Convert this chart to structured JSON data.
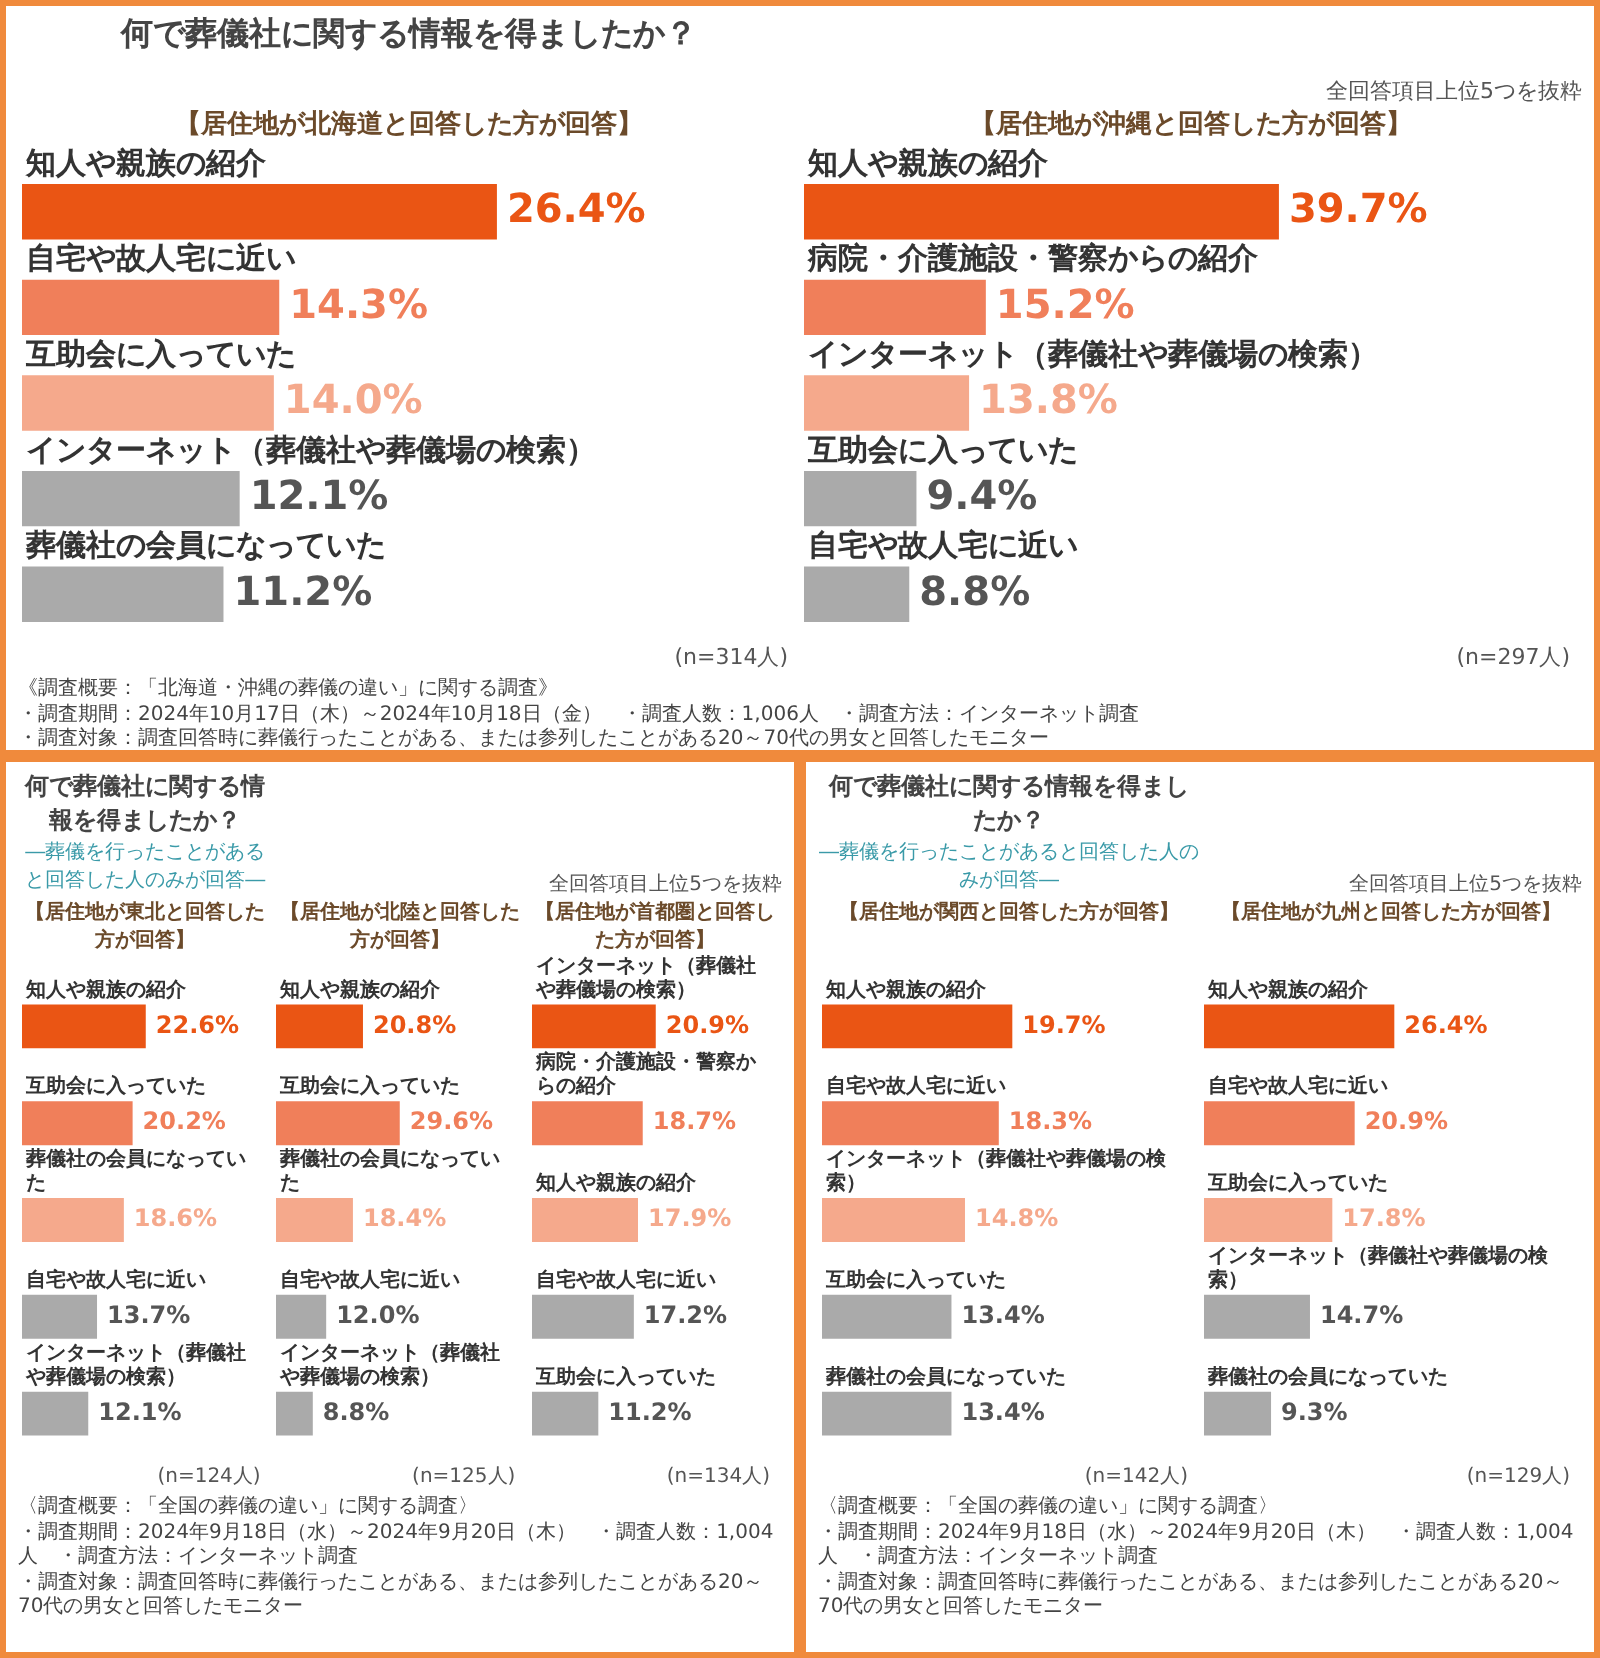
{
  "chart_data": [
    {
      "type": "bar",
      "orientation": "horizontal",
      "title": "何で葬儀社に関する情報を得ましたか？",
      "categories": [
        "知人や親族の紹介",
        "自宅や故人宅に近い",
        "互助会に入っていた",
        "インターネット（葬儀社や葬儀場の検索）",
        "葬儀社の会員になっていた"
      ],
      "values": [
        26.4,
        14.3,
        14.0,
        12.1,
        11.2
      ],
      "value_labels": [
        "26.4%",
        "14.3%",
        "14.0%",
        "12.1%",
        "11.2%"
      ],
      "colors": [
        "#ea5514",
        "#f07f5a",
        "#f5a98c",
        "#aaaaaa",
        "#aaaaaa"
      ],
      "annotations": [
        "【居住地が北海道と回答した方が回答】",
        "(n=314人)"
      ]
    },
    {
      "type": "bar",
      "orientation": "horizontal",
      "subtitle": "全回答項目上位5つを抜粋",
      "categories": [
        "知人や親族の紹介",
        "病院・介護施設・警察からの紹介",
        "インターネット（葬儀社や葬儀場の検索）",
        "互助会に入っていた",
        "自宅や故人宅に近い"
      ],
      "values": [
        39.7,
        15.2,
        13.8,
        9.4,
        8.8
      ],
      "value_labels": [
        "39.7%",
        "15.2%",
        "13.8%",
        "9.4%",
        "8.8%"
      ],
      "colors": [
        "#ea5514",
        "#f07f5a",
        "#f5a98c",
        "#aaaaaa",
        "#aaaaaa"
      ],
      "annotations": [
        "【居住地が沖縄と回答した方が回答】",
        "(n=297人)",
        "《調査概要：「北海道・沖縄の葬儀の違い」に関する調査》",
        "・調査期間：2024年10月17日（木）～2024年10月18日（金）　・調査人数：1,006人　・調査方法：インターネット調査",
        "・調査対象：調査回答時に葬儀行ったことがある、または参列したことがある20～70代の男女と回答したモニター"
      ]
    },
    {
      "type": "bar",
      "orientation": "horizontal",
      "title": "何で葬儀社に関する情報を得ましたか？",
      "subtitle": "―葬儀を行ったことがあると回答した人のみが回答―",
      "categories": [
        "知人や親族の紹介",
        "互助会に入っていた",
        "葬儀社の会員になっていた",
        "自宅や故人宅に近い",
        "インターネット（葬儀社や葬儀場の検索）"
      ],
      "values": [
        22.6,
        20.2,
        18.6,
        13.7,
        12.1
      ],
      "value_labels": [
        "22.6%",
        "20.2%",
        "18.6%",
        "13.7%",
        "12.1%"
      ],
      "colors": [
        "#ea5514",
        "#f07f5a",
        "#f5a98c",
        "#aaaaaa",
        "#aaaaaa"
      ],
      "annotations": [
        "【居住地が東北と回答した方が回答】",
        "(n=124人)"
      ]
    },
    {
      "type": "bar",
      "orientation": "horizontal",
      "categories": [
        "知人や親族の紹介",
        "互助会に入っていた",
        "葬儀社の会員になっていた",
        "自宅や故人宅に近い",
        "インターネット（葬儀社や葬儀場の検索）"
      ],
      "values": [
        20.8,
        29.6,
        18.4,
        12.0,
        8.8
      ],
      "value_labels": [
        "20.8%",
        "29.6%",
        "18.4%",
        "12.0%",
        "8.8%"
      ],
      "colors": [
        "#ea5514",
        "#f07f5a",
        "#f5a98c",
        "#aaaaaa",
        "#aaaaaa"
      ],
      "annotations": [
        "【居住地が北陸と回答した方が回答】",
        "(n=125人)"
      ]
    },
    {
      "type": "bar",
      "orientation": "horizontal",
      "subtitle": "全回答項目上位5つを抜粋",
      "categories": [
        "インターネット（葬儀社や葬儀場の検索）",
        "病院・介護施設・警察からの紹介",
        "知人や親族の紹介",
        "自宅や故人宅に近い",
        "互助会に入っていた"
      ],
      "values": [
        20.9,
        18.7,
        17.9,
        17.2,
        11.2
      ],
      "value_labels": [
        "20.9%",
        "18.7%",
        "17.9%",
        "17.2%",
        "11.2%"
      ],
      "colors": [
        "#ea5514",
        "#f07f5a",
        "#f5a98c",
        "#aaaaaa",
        "#aaaaaa"
      ],
      "annotations": [
        "【居住地が首都圏と回答した方が回答】",
        "(n=134人)",
        "〈調査概要：「全国の葬儀の違い」に関する調査〉",
        "・調査期間：2024年9月18日（水）～2024年9月20日（木）　・調査人数：1,004人　・調査方法：インターネット調査",
        "・調査対象：調査回答時に葬儀行ったことがある、または参列したことがある20～70代の男女と回答したモニター"
      ]
    },
    {
      "type": "bar",
      "orientation": "horizontal",
      "title": "何で葬儀社に関する情報を得ましたか？",
      "subtitle": "―葬儀を行ったことがあると回答した人のみが回答―",
      "categories": [
        "知人や親族の紹介",
        "自宅や故人宅に近い",
        "インターネット（葬儀社や葬儀場の検索）",
        "互助会に入っていた",
        "葬儀社の会員になっていた"
      ],
      "values": [
        19.7,
        18.3,
        14.8,
        13.4,
        13.4
      ],
      "value_labels": [
        "19.7%",
        "18.3%",
        "14.8%",
        "13.4%",
        "13.4%"
      ],
      "colors": [
        "#ea5514",
        "#f07f5a",
        "#f5a98c",
        "#aaaaaa",
        "#aaaaaa"
      ],
      "annotations": [
        "【居住地が関西と回答した方が回答】",
        "(n=142人)"
      ]
    },
    {
      "type": "bar",
      "orientation": "horizontal",
      "subtitle": "全回答項目上位5つを抜粋",
      "categories": [
        "知人や親族の紹介",
        "自宅や故人宅に近い",
        "互助会に入っていた",
        "インターネット（葬儀社や葬儀場の検索）",
        "葬儀社の会員になっていた"
      ],
      "values": [
        26.4,
        20.9,
        17.8,
        14.7,
        9.3
      ],
      "value_labels": [
        "26.4%",
        "20.9%",
        "17.8%",
        "14.7%",
        "9.3%"
      ],
      "colors": [
        "#ea5514",
        "#f07f5a",
        "#f5a98c",
        "#aaaaaa",
        "#aaaaaa"
      ],
      "annotations": [
        "【居住地が九州と回答した方が回答】",
        "(n=129人)",
        "〈調査概要：「全国の葬儀の違い」に関する調査〉",
        "・調査期間：2024年9月18日（水）～2024年9月20日（木）　・調査人数：1,004人　・調査方法：インターネット調査",
        "・調査対象：調査回答時に葬儀行ったことがある、または参列したことがある20～70代の男女と回答したモニター"
      ]
    }
  ]
}
